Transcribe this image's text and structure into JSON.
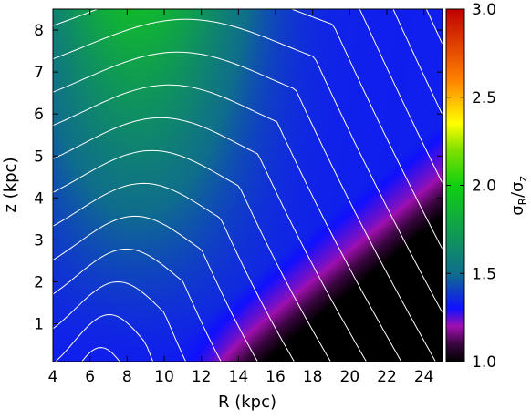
{
  "chart_data": {
    "type": "heatmap",
    "xlabel": "R (kpc)",
    "ylabel": "z (kpc)",
    "colorbar_label": "σ_R/σ_z",
    "colorbar_label_parts": {
      "main": "σ",
      "sub1": "R",
      "slash": "/σ",
      "sub2": "z"
    },
    "xlim": [
      4,
      25
    ],
    "ylim": [
      0.1,
      8.5
    ],
    "clim": [
      1.0,
      3.0
    ],
    "x_ticks": [
      4,
      6,
      8,
      10,
      12,
      14,
      16,
      18,
      20,
      22,
      24
    ],
    "y_ticks": [
      1,
      2,
      3,
      4,
      5,
      6,
      7,
      8
    ],
    "colorbar_ticks": [
      "1.0",
      "1.5",
      "2.0",
      "2.5",
      "3.0"
    ],
    "colorbar_tick_values": [
      1.0,
      1.5,
      2.0,
      2.5,
      3.0
    ],
    "colormap": [
      {
        "value": 1.0,
        "color": "#000000"
      },
      {
        "value": 1.1,
        "color": "#3a0640"
      },
      {
        "value": 1.2,
        "color": "#a010b0"
      },
      {
        "value": 1.3,
        "color": "#1010ff"
      },
      {
        "value": 1.5,
        "color": "#0f6e8c"
      },
      {
        "value": 2.0,
        "color": "#10d010"
      },
      {
        "value": 2.2,
        "color": "#80e000"
      },
      {
        "value": 2.35,
        "color": "#ffff00"
      },
      {
        "value": 2.6,
        "color": "#ff8000"
      },
      {
        "value": 3.0,
        "color": "#c00000"
      }
    ],
    "grid": false,
    "contours": "white"
  }
}
